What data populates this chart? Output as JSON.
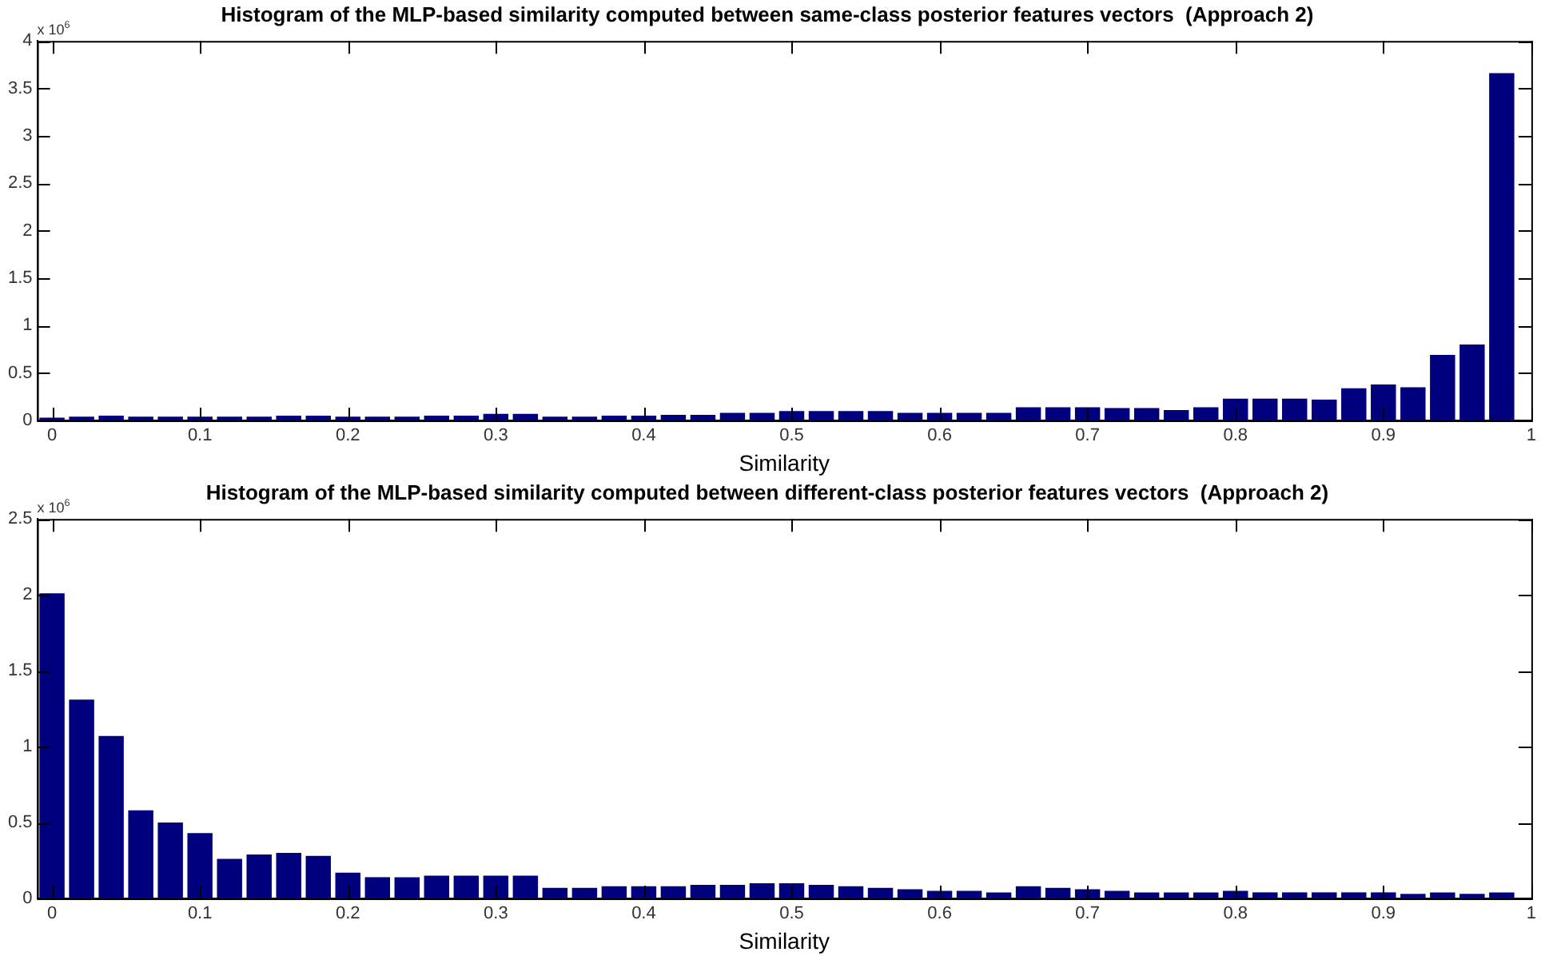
{
  "chart_data": [
    {
      "type": "histogram",
      "title": "Histogram of the MLP-based similarity computed between same-class posterior features vectors  (Approach 2)",
      "xlabel": "Similarity",
      "annotations": [
        "x 10$^{6}$"
      ],
      "color": "#00007f",
      "bins": [
        -0.01,
        0.01,
        0.03,
        0.05,
        0.07,
        0.09,
        0.11,
        0.13,
        0.15,
        0.17,
        0.19,
        0.21,
        0.23,
        0.25,
        0.27,
        0.29,
        0.31,
        0.33,
        0.35,
        0.37,
        0.39,
        0.41,
        0.43,
        0.45,
        0.47,
        0.49,
        0.51,
        0.53,
        0.55,
        0.57,
        0.59,
        0.61,
        0.63,
        0.65,
        0.67,
        0.69,
        0.71,
        0.73,
        0.75,
        0.77,
        0.79,
        0.81,
        0.83,
        0.85,
        0.87,
        0.89,
        0.91,
        0.93,
        0.95,
        0.97,
        0.99
      ],
      "values": [
        0.03,
        0.04,
        0.05,
        0.04,
        0.04,
        0.04,
        0.04,
        0.04,
        0.05,
        0.05,
        0.04,
        0.04,
        0.04,
        0.05,
        0.05,
        0.07,
        0.07,
        0.04,
        0.04,
        0.05,
        0.05,
        0.06,
        0.06,
        0.08,
        0.08,
        0.1,
        0.1,
        0.1,
        0.1,
        0.08,
        0.08,
        0.08,
        0.08,
        0.14,
        0.14,
        0.14,
        0.13,
        0.13,
        0.11,
        0.14,
        0.23,
        0.23,
        0.23,
        0.22,
        0.34,
        0.38,
        0.35,
        0.69,
        0.8,
        3.66
      ],
      "xlim": [
        -0.01,
        1
      ],
      "xticks": [
        0,
        0.1,
        0.2,
        0.3,
        0.4,
        0.5,
        0.6,
        0.7,
        0.8,
        0.9,
        1
      ],
      "ylim": [
        0,
        4
      ],
      "yticks": [
        0,
        0.5,
        1,
        1.5,
        2,
        2.5,
        3,
        3.5,
        4
      ],
      "grid": false,
      "legend": false
    },
    {
      "type": "histogram",
      "title": "Histogram of the MLP-based similarity computed between different-class posterior features vectors  (Approach 2)",
      "xlabel": "Similarity",
      "annotations": [
        "x 10$^{6}$"
      ],
      "color": "#00007f",
      "bins": [
        -0.01,
        0.01,
        0.03,
        0.05,
        0.07,
        0.09,
        0.11,
        0.13,
        0.15,
        0.17,
        0.19,
        0.21,
        0.23,
        0.25,
        0.27,
        0.29,
        0.31,
        0.33,
        0.35,
        0.37,
        0.39,
        0.41,
        0.43,
        0.45,
        0.47,
        0.49,
        0.51,
        0.53,
        0.55,
        0.57,
        0.59,
        0.61,
        0.63,
        0.65,
        0.67,
        0.69,
        0.71,
        0.73,
        0.75,
        0.77,
        0.79,
        0.81,
        0.83,
        0.85,
        0.87,
        0.89,
        0.91,
        0.93,
        0.95,
        0.97,
        0.99
      ],
      "values": [
        2.01,
        1.31,
        1.07,
        0.58,
        0.5,
        0.43,
        0.26,
        0.29,
        0.3,
        0.28,
        0.17,
        0.14,
        0.14,
        0.15,
        0.15,
        0.15,
        0.15,
        0.07,
        0.07,
        0.08,
        0.08,
        0.08,
        0.09,
        0.09,
        0.1,
        0.1,
        0.09,
        0.08,
        0.07,
        0.06,
        0.05,
        0.05,
        0.04,
        0.08,
        0.07,
        0.06,
        0.05,
        0.04,
        0.04,
        0.04,
        0.05,
        0.04,
        0.04,
        0.04,
        0.04,
        0.04,
        0.03,
        0.04,
        0.03,
        0.04
      ],
      "xlim": [
        -0.01,
        1
      ],
      "xticks": [
        0,
        0.1,
        0.2,
        0.3,
        0.4,
        0.5,
        0.6,
        0.7,
        0.8,
        0.9,
        1
      ],
      "ylim": [
        0,
        2.5
      ],
      "yticks": [
        0,
        0.5,
        1,
        1.5,
        2,
        2.5
      ],
      "grid": false,
      "legend": false
    }
  ]
}
